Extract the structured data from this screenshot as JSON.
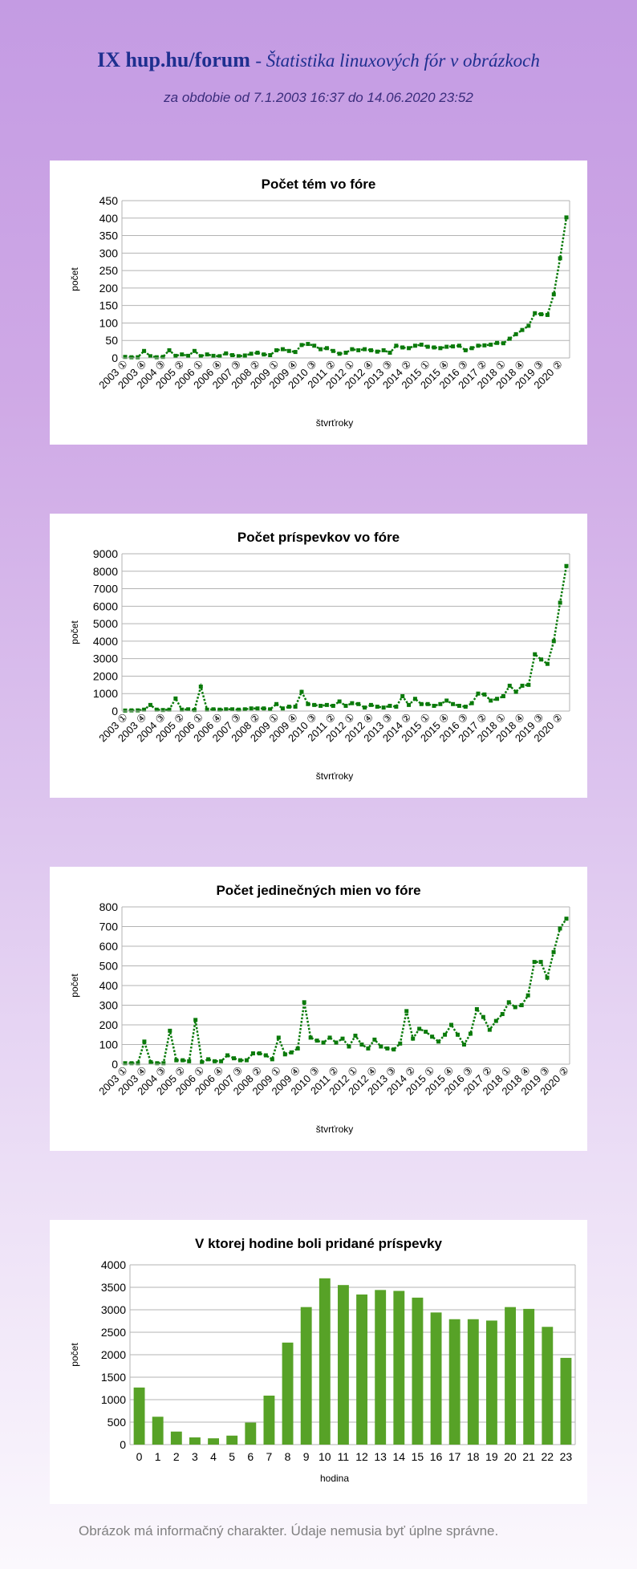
{
  "header": {
    "site": "IX hup.hu/forum",
    "subtitle_script": "- Štatistika linuxových fór v obrázkoch",
    "period": "za obdobie od 7.1.2003 16:37 do 14.06.2020 23:52"
  },
  "footer": "Obrázok má informačný charakter. Údaje nemusia byť úplne správne.",
  "colors": {
    "series": "#0a7a0a",
    "bar": "#57a227",
    "grid": "#b3b3b3",
    "text": "#000000"
  },
  "chart_data": [
    {
      "type": "line",
      "title": "Počet tém vo fóre",
      "xlabel": "štvrťroky",
      "ylabel": "počet",
      "ylim": [
        0,
        450
      ],
      "yticks": [
        "0",
        "50",
        "100",
        "150",
        "200",
        "250",
        "300",
        "350",
        "400",
        "450"
      ],
      "xtick_labels": [
        "2003 ①",
        "2003 ④",
        "2004 ③",
        "2005 ②",
        "2006 ①",
        "2006 ④",
        "2007 ③",
        "2008 ②",
        "2009 ①",
        "2009 ④",
        "2010 ③",
        "2011 ②",
        "2012 ①",
        "2012 ④",
        "2013 ③",
        "2014 ②",
        "2015 ①",
        "2015 ④",
        "2016 ③",
        "2017 ②",
        "2018 ①",
        "2018 ④",
        "2019 ③",
        "2020 ②"
      ],
      "series": [
        {
          "values": [
            3,
            2,
            2,
            20,
            5,
            2,
            3,
            22,
            6,
            10,
            6,
            20,
            5,
            10,
            6,
            5,
            13,
            8,
            5,
            7,
            12,
            15,
            10,
            8,
            22,
            25,
            20,
            17,
            37,
            40,
            35,
            25,
            28,
            20,
            12,
            15,
            25,
            22,
            25,
            22,
            18,
            22,
            15,
            35,
            30,
            28,
            35,
            38,
            32,
            30,
            28,
            32,
            33,
            35,
            22,
            28,
            35,
            36,
            38,
            43,
            42,
            55,
            68,
            80,
            92,
            128,
            125,
            123,
            182,
            285,
            402
          ]
        }
      ]
    },
    {
      "type": "line",
      "title": "Počet príspevkov vo fóre",
      "xlabel": "štvrťroky",
      "ylabel": "počet",
      "ylim": [
        0,
        9000
      ],
      "yticks": [
        "0",
        "1000",
        "2000",
        "3000",
        "4000",
        "5000",
        "6000",
        "7000",
        "8000",
        "9000"
      ],
      "xtick_labels": [
        "2003 ①",
        "2003 ④",
        "2004 ③",
        "2005 ②",
        "2006 ①",
        "2006 ④",
        "2007 ③",
        "2008 ②",
        "2009 ①",
        "2009 ④",
        "2010 ③",
        "2011 ②",
        "2012 ①",
        "2012 ④",
        "2013 ③",
        "2014 ②",
        "2015 ①",
        "2015 ④",
        "2016 ③",
        "2017 ②",
        "2018 ①",
        "2018 ④",
        "2019 ③",
        "2020 ②"
      ],
      "series": [
        {
          "values": [
            30,
            40,
            40,
            80,
            350,
            80,
            60,
            80,
            720,
            80,
            100,
            60,
            1400,
            80,
            100,
            80,
            100,
            100,
            80,
            100,
            150,
            150,
            150,
            100,
            400,
            150,
            250,
            250,
            1100,
            400,
            350,
            300,
            350,
            300,
            550,
            300,
            450,
            400,
            200,
            350,
            250,
            200,
            300,
            250,
            850,
            350,
            700,
            400,
            400,
            300,
            400,
            600,
            400,
            300,
            250,
            450,
            1000,
            950,
            600,
            700,
            850,
            1450,
            1100,
            1450,
            1500,
            3250,
            2950,
            2700,
            4000,
            6200,
            8300
          ]
        }
      ]
    },
    {
      "type": "line",
      "title": "Počet jedinečných mien vo fóre",
      "xlabel": "štvrťroky",
      "ylabel": "počet",
      "ylim": [
        0,
        800
      ],
      "yticks": [
        "0",
        "100",
        "200",
        "300",
        "400",
        "500",
        "600",
        "700",
        "800"
      ],
      "xtick_labels": [
        "2003 ①",
        "2003 ④",
        "2004 ③",
        "2005 ②",
        "2006 ①",
        "2006 ④",
        "2007 ③",
        "2008 ②",
        "2009 ①",
        "2009 ④",
        "2010 ③",
        "2011 ②",
        "2012 ①",
        "2012 ④",
        "2013 ③",
        "2014 ②",
        "2015 ①",
        "2015 ④",
        "2016 ③",
        "2017 ②",
        "2018 ①",
        "2018 ④",
        "2019 ③",
        "2020 ②"
      ],
      "series": [
        {
          "values": [
            5,
            5,
            5,
            115,
            10,
            5,
            5,
            170,
            20,
            20,
            15,
            225,
            10,
            25,
            15,
            15,
            45,
            30,
            20,
            20,
            55,
            55,
            45,
            25,
            135,
            50,
            60,
            80,
            315,
            135,
            120,
            110,
            135,
            110,
            130,
            90,
            145,
            100,
            80,
            125,
            90,
            80,
            75,
            105,
            270,
            130,
            180,
            165,
            140,
            115,
            150,
            200,
            150,
            100,
            155,
            280,
            240,
            175,
            220,
            255,
            315,
            290,
            300,
            350,
            520,
            520,
            440,
            570,
            690,
            740
          ]
        }
      ]
    },
    {
      "type": "bar",
      "title": "V ktorej hodine boli pridané príspevky",
      "xlabel": "hodina",
      "ylabel": "počet",
      "ylim": [
        0,
        4000
      ],
      "yticks": [
        "0",
        "500",
        "1000",
        "1500",
        "2000",
        "2500",
        "3000",
        "3500",
        "4000"
      ],
      "categories": [
        "0",
        "1",
        "2",
        "3",
        "4",
        "5",
        "6",
        "7",
        "8",
        "9",
        "10",
        "11",
        "12",
        "13",
        "14",
        "15",
        "16",
        "17",
        "18",
        "19",
        "20",
        "21",
        "22",
        "23"
      ],
      "values": [
        1270,
        620,
        290,
        160,
        140,
        200,
        490,
        1090,
        2270,
        3060,
        3700,
        3550,
        3340,
        3440,
        3420,
        3270,
        2940,
        2790,
        2790,
        2760,
        3060,
        3020,
        2620,
        1930
      ]
    }
  ]
}
